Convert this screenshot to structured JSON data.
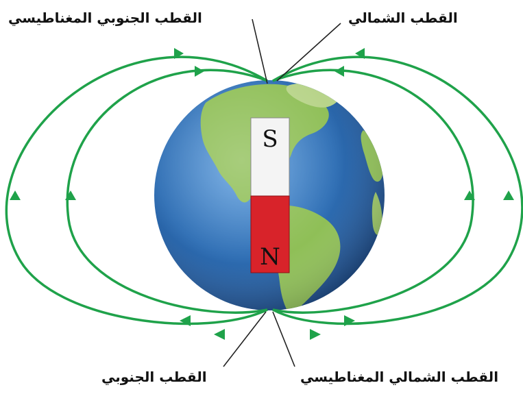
{
  "labels": {
    "magnetic_south_pole": "القطب الجنوبي المغناطيسي",
    "geographic_north_pole": "القطب الشمالي",
    "geographic_south_pole": "القطب الجنوبي",
    "magnetic_north_pole": "القطب الشمالي المغناطيسي"
  },
  "magnet": {
    "top_letter": "S",
    "bottom_letter": "N",
    "top_color": "#f4f4f4",
    "bottom_color": "#d8232a"
  },
  "colors": {
    "field_lines": "#1fa24a",
    "ocean": "#2f6fb5",
    "land": "#8fbf57",
    "pointer_lines": "#222222"
  }
}
